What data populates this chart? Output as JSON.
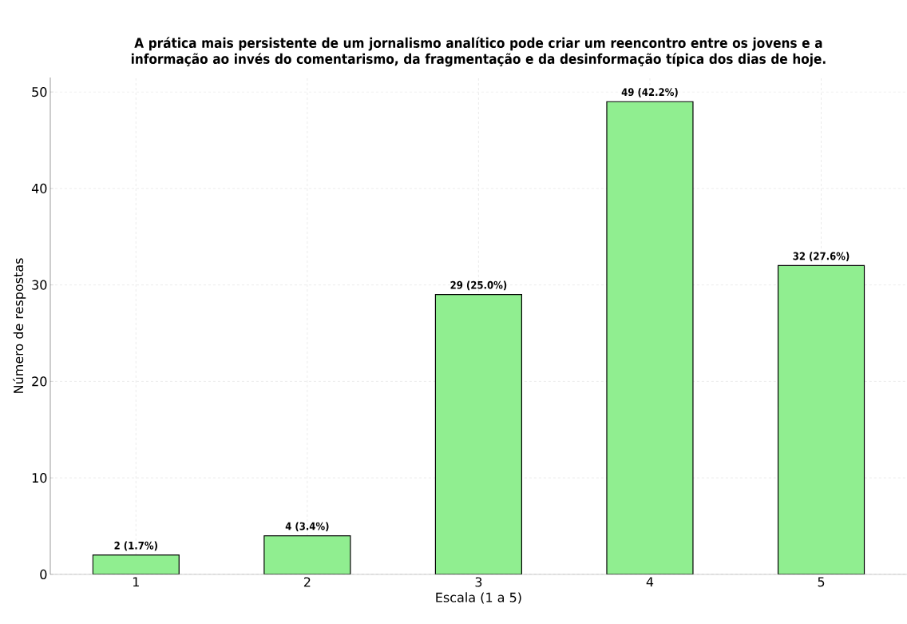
{
  "chart_data": {
    "type": "bar",
    "title": "A prática mais persistente de um jornalismo analítico pode criar um reencontro entre os jovens e a informação ao invés do comentarismo, da fragmentação e da desinformação típica dos dias de hoje.",
    "xlabel": "Escala (1 a 5)",
    "ylabel": "Número de respostas",
    "categories": [
      "1",
      "2",
      "3",
      "4",
      "5"
    ],
    "values": [
      2,
      4,
      29,
      49,
      32
    ],
    "value_labels": [
      "2 (1.7%)",
      "4 (3.4%)",
      "29 (25.0%)",
      "49 (42.2%)",
      "32 (27.6%)"
    ],
    "color": "#90ee90",
    "ylim": [
      0,
      51.5
    ],
    "yticks": [
      0,
      10,
      20,
      30,
      40,
      50
    ],
    "grid": true
  }
}
